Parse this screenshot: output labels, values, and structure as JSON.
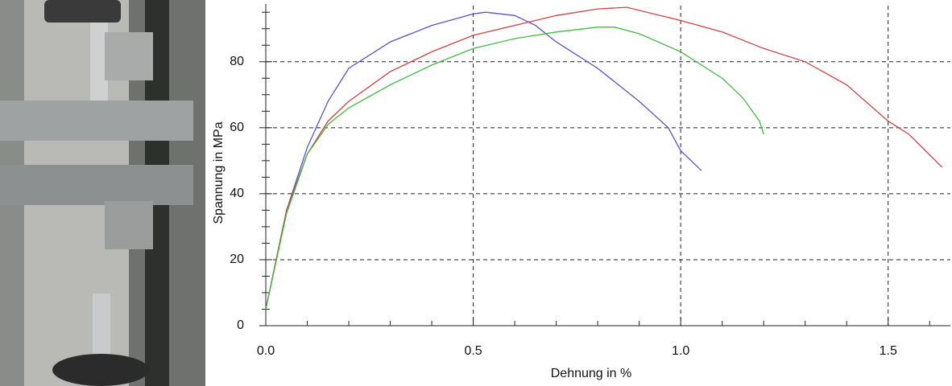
{
  "chart_data": {
    "type": "line",
    "xlabel": "Dehnung in %",
    "ylabel": "Spannung in MPa",
    "xlim": [
      0,
      1.65
    ],
    "ylim": [
      0,
      97
    ],
    "xticks": [
      {
        "value": 0,
        "label": "0.0"
      },
      0.5,
      {
        "value": 1,
        "label": "1.0"
      },
      1.5
    ],
    "yticks": [
      0,
      20,
      40,
      60,
      80
    ],
    "xminorticks": [
      0.1,
      0.2,
      0.3,
      0.4,
      0.6,
      0.7,
      0.8,
      0.9,
      1.1,
      1.2,
      1.3,
      1.4,
      1.6
    ],
    "yminorticks": [
      5,
      10,
      15,
      25,
      30,
      35,
      45,
      50,
      55,
      65,
      70,
      75,
      85,
      90,
      95
    ],
    "grid": true,
    "series": [
      {
        "color": "#5555c8",
        "x": [
          0,
          0.05,
          0.1,
          0.15,
          0.2,
          0.3,
          0.4,
          0.5,
          0.53,
          0.6,
          0.65,
          0.7,
          0.8,
          0.9,
          0.97,
          1.0,
          1.05
        ],
        "values": [
          5,
          35,
          54,
          68,
          78,
          86,
          91,
          94.5,
          95,
          94,
          91,
          86,
          78,
          68,
          60,
          53,
          47
        ]
      },
      {
        "color": "#cc4444",
        "x": [
          0,
          0.05,
          0.1,
          0.15,
          0.2,
          0.3,
          0.4,
          0.5,
          0.6,
          0.7,
          0.8,
          0.87,
          1.0,
          1.1,
          1.2,
          1.3,
          1.4,
          1.5,
          1.55,
          1.63
        ],
        "values": [
          5,
          35,
          52,
          62,
          68,
          77,
          83,
          88,
          91,
          94,
          96,
          96.5,
          92.5,
          89,
          84,
          80,
          73,
          62,
          58,
          48
        ]
      },
      {
        "color": "#44bb44",
        "x": [
          0,
          0.05,
          0.1,
          0.15,
          0.2,
          0.3,
          0.4,
          0.5,
          0.6,
          0.7,
          0.8,
          0.84,
          0.9,
          1.0,
          1.1,
          1.15,
          1.19,
          1.2
        ],
        "values": [
          5,
          34,
          52,
          61,
          66,
          73,
          79,
          84,
          87,
          89,
          90.5,
          90.5,
          88.5,
          83,
          75,
          69,
          62,
          58
        ]
      }
    ]
  }
}
